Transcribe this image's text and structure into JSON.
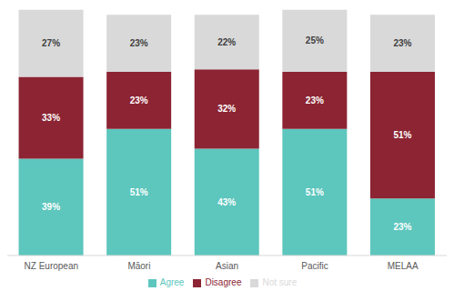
{
  "chart_data": {
    "type": "bar",
    "stacked": true,
    "data_labels": true,
    "tick_labels": "x",
    "legend": "bottom",
    "categories": [
      "NZ European",
      "Māori",
      "Asian",
      "Pacific",
      "MELAA"
    ],
    "ylim": [
      0,
      100
    ],
    "series": [
      {
        "name": "Agree",
        "color": "#5dc6bd",
        "values": [
          39,
          51,
          43,
          51,
          23
        ],
        "value_labels": [
          "39%",
          "51%",
          "43%",
          "51%",
          "23%"
        ]
      },
      {
        "name": "Disagree",
        "color": "#8c2433",
        "values": [
          33,
          23,
          32,
          23,
          51
        ],
        "value_labels": [
          "33%",
          "23%",
          "32%",
          "23%",
          "51%"
        ]
      },
      {
        "name": "Not sure",
        "color": "#d9d9d9",
        "values": [
          27,
          23,
          22,
          25,
          23
        ],
        "value_labels": [
          "27%",
          "23%",
          "22%",
          "25%",
          "23%"
        ]
      }
    ]
  }
}
